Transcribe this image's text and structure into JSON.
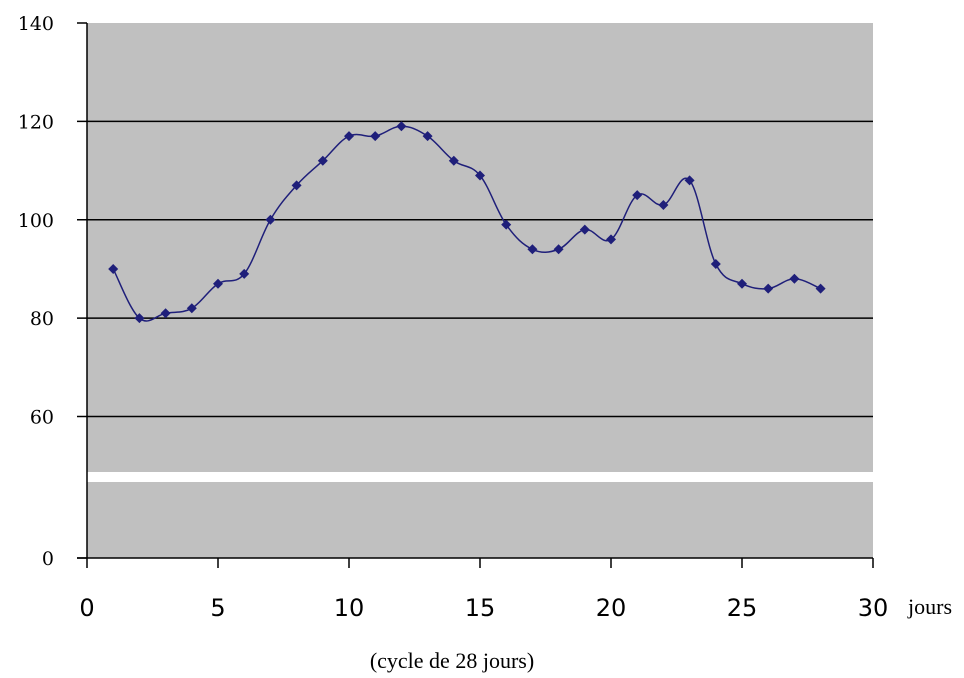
{
  "chart_data": {
    "type": "line",
    "title": "",
    "xlabel": "(cycle de 28 jours)",
    "x_unit": "jours",
    "ylabel": "",
    "xlim": [
      0,
      30
    ],
    "x_ticks": [
      0,
      5,
      10,
      15,
      20,
      25,
      30
    ],
    "y_ticks": [
      0,
      60,
      80,
      100,
      120,
      140
    ],
    "y_axis_break": "between 0 and 60",
    "grid": "horizontal",
    "legend": "none",
    "colors": {
      "plot_background": "#c0c0c0",
      "series_line": "#1f1f7a",
      "gridline": "#000000",
      "axis_break": "#ffffff"
    },
    "series": [
      {
        "x": [
          1,
          2,
          3,
          4,
          5,
          6,
          7,
          8,
          9,
          10,
          11,
          12,
          13,
          14,
          15,
          16,
          17,
          18,
          19,
          20,
          21,
          22,
          23,
          24,
          25,
          26,
          27,
          28
        ],
        "values": [
          90,
          80,
          81,
          82,
          87,
          89,
          100,
          107,
          112,
          117,
          117,
          119,
          117,
          112,
          109,
          99,
          94,
          94,
          98,
          96,
          105,
          103,
          108,
          91,
          87,
          86,
          88,
          86
        ]
      }
    ]
  }
}
